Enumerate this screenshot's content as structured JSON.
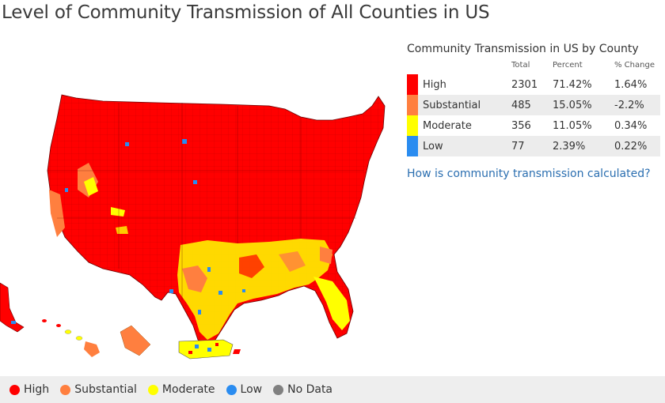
{
  "title": "Level of Community Transmission of All Counties in US",
  "colors": {
    "high": "#ff0000",
    "substantial": "#ff7f3f",
    "moderate": "#ffff00",
    "low": "#2a8cf0",
    "no_data": "#808080",
    "link": "#2a6eb0"
  },
  "panel": {
    "title": "Community Transmission in US by County",
    "headers": {
      "total": "Total",
      "percent": "Percent",
      "change": "% Change"
    },
    "rows": [
      {
        "level": "High",
        "total": "2301",
        "percent": "71.42%",
        "change": "1.64%"
      },
      {
        "level": "Substantial",
        "total": "485",
        "percent": "15.05%",
        "change": "-2.2%"
      },
      {
        "level": "Moderate",
        "total": "356",
        "percent": "11.05%",
        "change": "0.34%"
      },
      {
        "level": "Low",
        "total": "77",
        "percent": "2.39%",
        "change": "0.22%"
      }
    ],
    "link": "How is community transmission calculated?"
  },
  "legend": {
    "high": "High",
    "substantial": "Substantial",
    "moderate": "Moderate",
    "low": "Low",
    "no_data": "No Data"
  }
}
